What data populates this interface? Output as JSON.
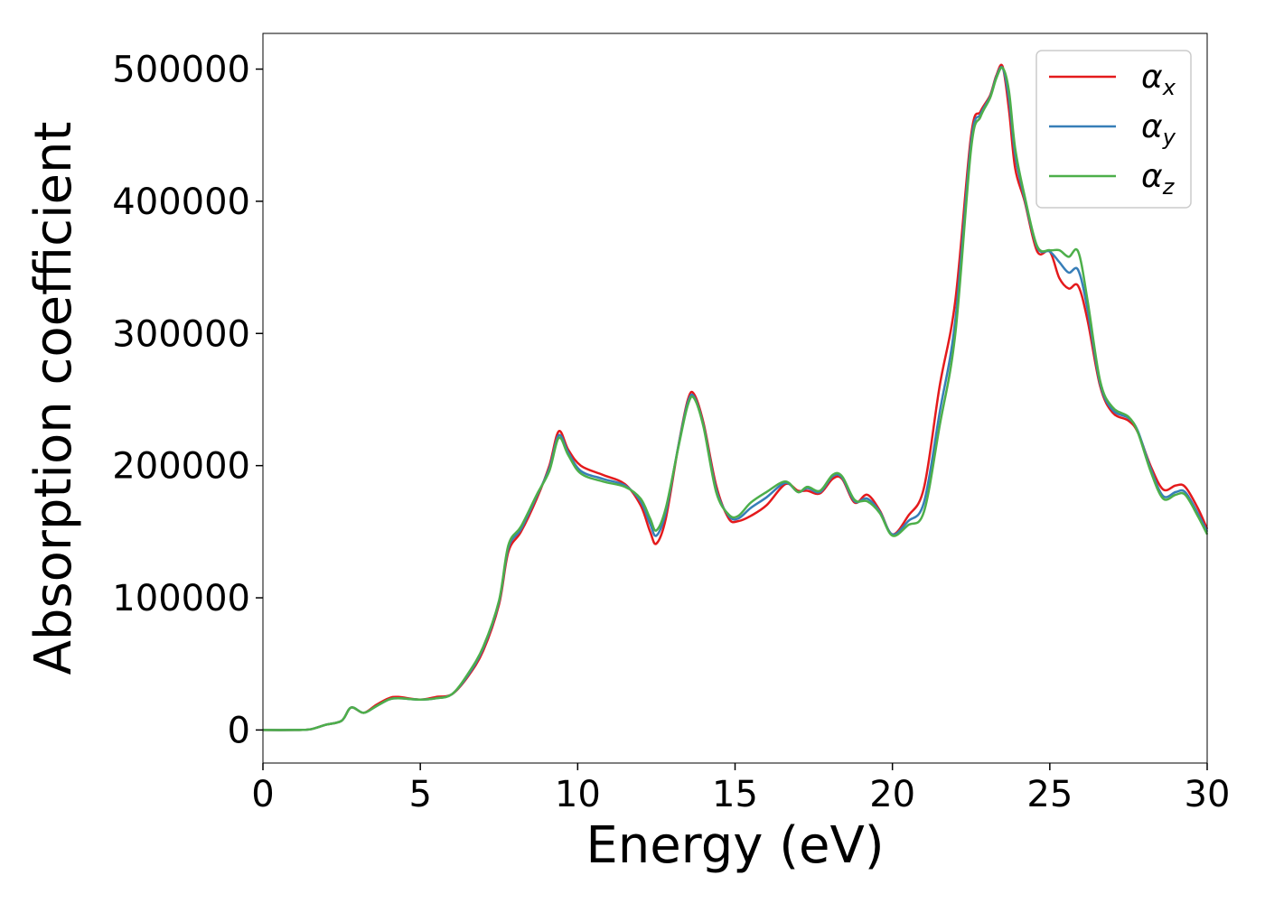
{
  "chart_data": {
    "type": "line",
    "xlabel": "Energy (eV)",
    "ylabel": "Absorption coefficient",
    "xlim": [
      0,
      30
    ],
    "ylim": [
      -25000,
      527000
    ],
    "xticks": [
      0,
      5,
      10,
      15,
      20,
      25,
      30
    ],
    "xtick_labels": [
      "0",
      "5",
      "10",
      "15",
      "20",
      "25",
      "30"
    ],
    "yticks": [
      0,
      100000,
      200000,
      300000,
      400000,
      500000
    ],
    "ytick_labels": [
      "0",
      "100000",
      "200000",
      "300000",
      "400000",
      "500000"
    ],
    "grid": false,
    "legend_position": "top-right",
    "series": [
      {
        "name": "α",
        "subscript": "x",
        "color": "#e41a1c",
        "x": [
          0,
          1,
          1.5,
          2,
          2.5,
          2.8,
          3.2,
          3.6,
          4.0,
          4.3,
          5.0,
          5.5,
          6.0,
          6.5,
          7.0,
          7.5,
          7.8,
          8.2,
          8.7,
          9.1,
          9.4,
          9.7,
          10.1,
          10.8,
          11.5,
          12.0,
          12.3,
          12.5,
          12.8,
          13.2,
          13.5,
          13.7,
          14.0,
          14.4,
          14.8,
          15.1,
          15.5,
          16.0,
          16.6,
          17.0,
          17.3,
          17.7,
          18.1,
          18.4,
          18.8,
          19.2,
          19.6,
          20.0,
          20.5,
          21.0,
          21.5,
          22.0,
          22.5,
          22.8,
          23.1,
          23.3,
          23.5,
          23.7,
          23.9,
          24.2,
          24.6,
          25.0,
          25.3,
          25.6,
          25.9,
          26.2,
          26.6,
          27.0,
          27.5,
          27.8,
          28.2,
          28.6,
          29.0,
          29.3,
          29.7,
          30.0
        ],
        "y": [
          0,
          0,
          500,
          4000,
          7000,
          17000,
          13000,
          19000,
          24000,
          25000,
          23000,
          25000,
          27000,
          40000,
          60000,
          95000,
          135000,
          150000,
          175000,
          200000,
          226000,
          212000,
          200000,
          193000,
          186000,
          170000,
          150000,
          141000,
          160000,
          215000,
          250000,
          254000,
          232000,
          185000,
          160000,
          158000,
          162000,
          170000,
          186000,
          181000,
          181000,
          179000,
          190000,
          190000,
          172000,
          178000,
          166000,
          148000,
          162000,
          183000,
          260000,
          325000,
          450000,
          468000,
          480000,
          495000,
          502000,
          470000,
          425000,
          400000,
          362000,
          362000,
          342000,
          334000,
          336000,
          310000,
          260000,
          240000,
          234000,
          225000,
          200000,
          182000,
          185000,
          184000,
          168000,
          152000
        ]
      },
      {
        "name": "α",
        "subscript": "y",
        "color": "#377eb8",
        "x": [
          0,
          1,
          1.5,
          2,
          2.5,
          2.8,
          3.2,
          3.6,
          4.0,
          4.3,
          5.0,
          5.5,
          6.0,
          6.5,
          7.0,
          7.5,
          7.8,
          8.2,
          8.7,
          9.1,
          9.4,
          9.7,
          10.1,
          10.8,
          11.5,
          12.0,
          12.3,
          12.5,
          12.8,
          13.2,
          13.5,
          13.7,
          14.0,
          14.4,
          14.8,
          15.1,
          15.5,
          16.0,
          16.6,
          17.0,
          17.3,
          17.7,
          18.1,
          18.4,
          18.8,
          19.2,
          19.6,
          20.0,
          20.5,
          21.0,
          21.5,
          22.0,
          22.5,
          22.8,
          23.1,
          23.3,
          23.5,
          23.7,
          23.9,
          24.2,
          24.6,
          25.0,
          25.3,
          25.6,
          25.9,
          26.2,
          26.6,
          27.0,
          27.5,
          27.8,
          28.2,
          28.6,
          29.0,
          29.3,
          29.7,
          30.0
        ],
        "y": [
          0,
          0,
          500,
          4000,
          7000,
          17000,
          13000,
          18000,
          23000,
          24000,
          23000,
          24000,
          27000,
          41000,
          62000,
          97000,
          138000,
          152000,
          177000,
          198000,
          223000,
          210000,
          196000,
          190000,
          185000,
          173000,
          156000,
          147000,
          165000,
          215000,
          248000,
          252000,
          230000,
          182000,
          162000,
          160000,
          168000,
          176000,
          187000,
          180000,
          183000,
          180000,
          192000,
          191000,
          173000,
          175000,
          165000,
          148000,
          158000,
          172000,
          240000,
          310000,
          445000,
          466000,
          479000,
          494000,
          501000,
          478000,
          435000,
          402000,
          365000,
          362000,
          354000,
          346000,
          348000,
          318000,
          262000,
          242000,
          236000,
          226000,
          198000,
          177000,
          180000,
          180000,
          164000,
          150000
        ]
      },
      {
        "name": "α",
        "subscript": "z",
        "color": "#4daf4a",
        "x": [
          0,
          1,
          1.5,
          2,
          2.5,
          2.8,
          3.2,
          3.6,
          4.0,
          4.3,
          5.0,
          5.5,
          6.0,
          6.5,
          7.0,
          7.5,
          7.8,
          8.2,
          8.7,
          9.1,
          9.4,
          9.7,
          10.1,
          10.8,
          11.5,
          12.0,
          12.3,
          12.5,
          12.8,
          13.2,
          13.5,
          13.7,
          14.0,
          14.4,
          14.8,
          15.1,
          15.5,
          16.0,
          16.6,
          17.0,
          17.3,
          17.7,
          18.1,
          18.4,
          18.8,
          19.2,
          19.6,
          20.0,
          20.5,
          21.0,
          21.5,
          22.0,
          22.5,
          22.8,
          23.1,
          23.3,
          23.5,
          23.7,
          23.9,
          24.2,
          24.6,
          25.0,
          25.3,
          25.6,
          25.9,
          26.2,
          26.6,
          27.0,
          27.5,
          27.8,
          28.2,
          28.6,
          29.0,
          29.3,
          29.7,
          30.0
        ],
        "y": [
          0,
          0,
          500,
          4000,
          7000,
          17000,
          13000,
          18000,
          23000,
          24000,
          23000,
          24000,
          27000,
          42000,
          63000,
          98000,
          140000,
          154000,
          178000,
          196000,
          221000,
          208000,
          194000,
          188000,
          184000,
          175000,
          160000,
          151000,
          168000,
          214000,
          246000,
          251000,
          229000,
          180000,
          163000,
          162000,
          172000,
          180000,
          188000,
          180000,
          184000,
          181000,
          193000,
          192000,
          174000,
          173000,
          164000,
          147000,
          155000,
          165000,
          230000,
          300000,
          440000,
          464000,
          478000,
          493000,
          501000,
          484000,
          440000,
          404000,
          366000,
          363000,
          363000,
          358000,
          362000,
          325000,
          264000,
          244000,
          237000,
          225000,
          196000,
          175000,
          178000,
          178000,
          162000,
          148000
        ]
      }
    ]
  }
}
